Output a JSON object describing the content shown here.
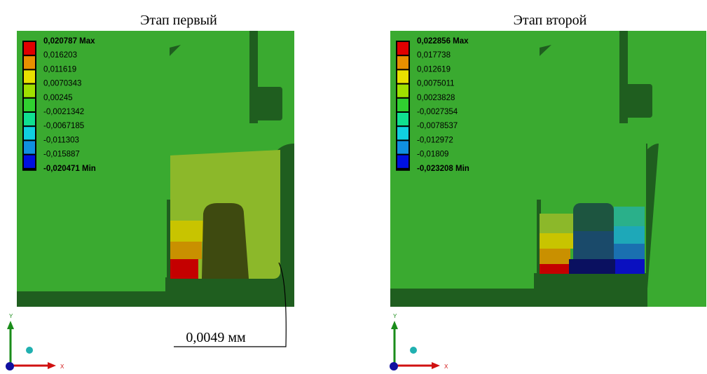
{
  "panels": [
    {
      "title": "Этап первый",
      "legend": [
        "0,020787 Max",
        "0,016203",
        "0,011619",
        "0,0070343",
        "0,00245",
        "-0,0021342",
        "-0,0067185",
        "-0,011303",
        "-0,015887",
        "-0,020471 Min"
      ]
    },
    {
      "title": "Этап второй",
      "legend": [
        "0,022856 Max",
        "0,017738",
        "0,012619",
        "0,0075011",
        "0,0023828",
        "-0,0027354",
        "-0,0078537",
        "-0,012972",
        "-0,01809",
        "-0,023208 Min"
      ]
    }
  ],
  "annotation": "0,0049 мм",
  "axes": {
    "y": "Y",
    "x": "X"
  }
}
